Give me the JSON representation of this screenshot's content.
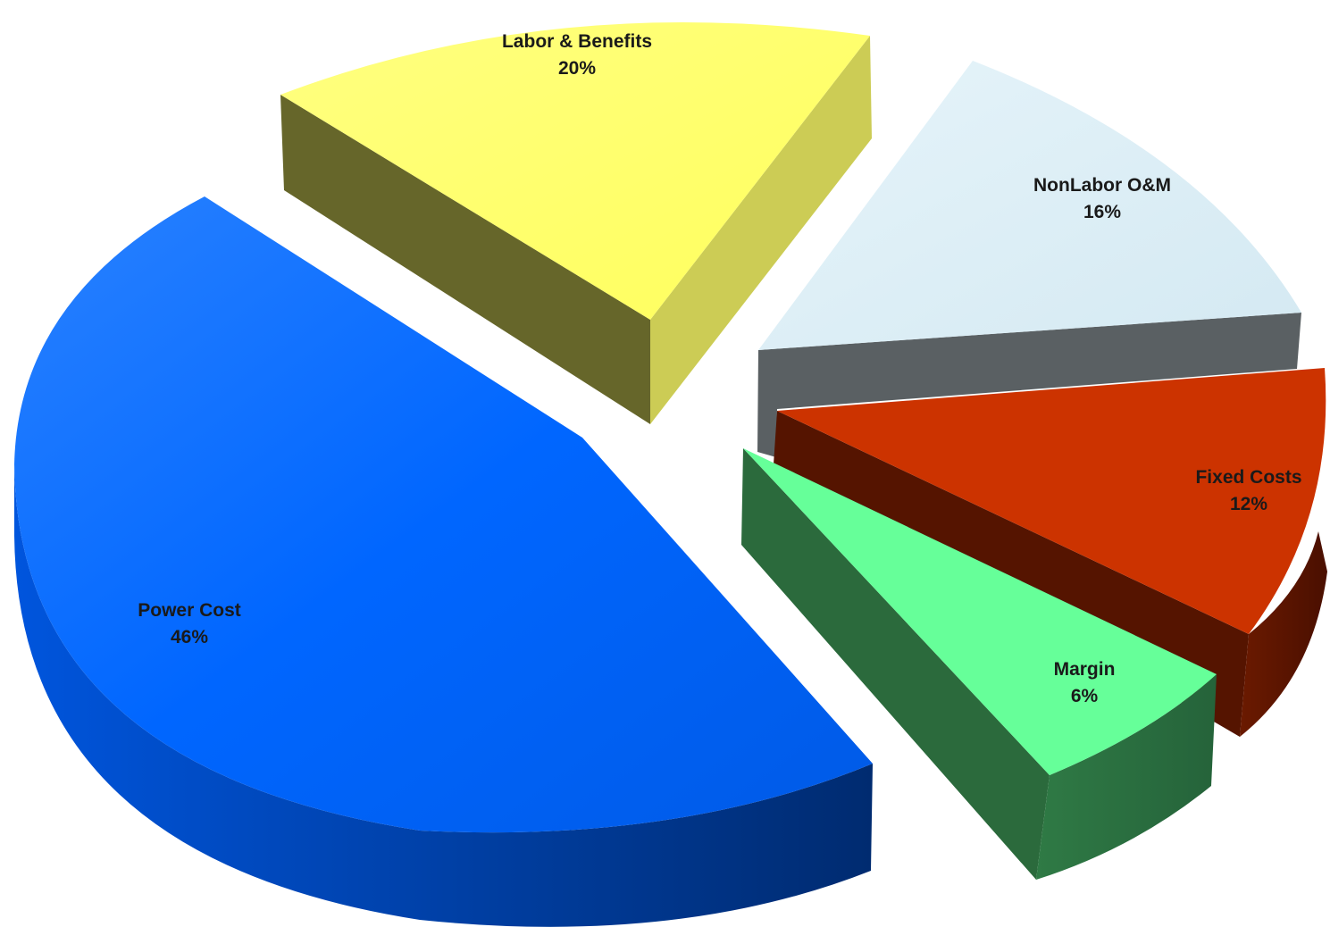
{
  "chart_data": {
    "type": "pie",
    "variant": "3d-exploded",
    "title": "",
    "slices": [
      {
        "label": "Labor & Benefits",
        "percent_label": "20%",
        "value": 20,
        "top_color": "#ffff66",
        "side_color": "#cccc55",
        "inner_color": "#66662a"
      },
      {
        "label": "NonLabor O&M",
        "percent_label": "16%",
        "value": 16,
        "top_color": "#dbeef5",
        "side_color": "#c7d9e0",
        "inner_color": "#5a6063"
      },
      {
        "label": "Fixed Costs",
        "percent_label": "12%",
        "value": 12,
        "top_color": "#cc3300",
        "side_color": "#5a1200",
        "inner_color": "#551400"
      },
      {
        "label": "Margin",
        "percent_label": "6%",
        "value": 6,
        "top_color": "#66ff99",
        "side_color": "#2f7a45",
        "inner_color": "#2b6a3c"
      },
      {
        "label": "Power Cost",
        "percent_label": "46%",
        "value": 46,
        "top_color": "#0066ff",
        "side_color": "#003a99",
        "inner_color": "#003080"
      }
    ],
    "legend": "none",
    "data_labels": "inside"
  }
}
